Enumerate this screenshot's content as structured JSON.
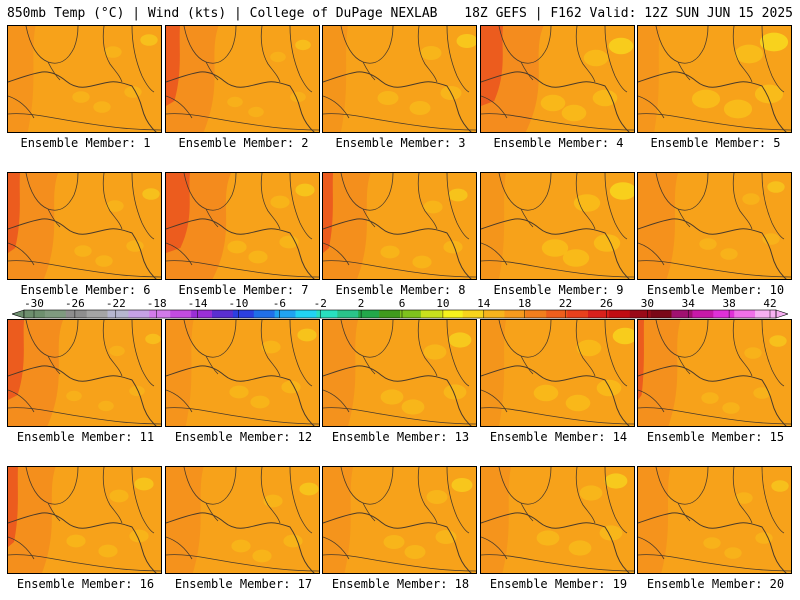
{
  "header": {
    "left": "850mb Temp (°C) | Wind (kts) | College of DuPage NEXLAB",
    "right": "18Z GEFS | F162 Valid: 12Z SUN JUN 15 2025"
  },
  "panels": [
    {
      "label": "Ensemble Member: 1",
      "west_hot": 0.15,
      "east_cool": 0.15
    },
    {
      "label": "Ensemble Member: 2",
      "west_hot": 0.65,
      "east_cool": 0.1
    },
    {
      "label": "Ensemble Member: 3",
      "west_hot": 0.1,
      "east_cool": 0.25
    },
    {
      "label": "Ensemble Member: 4",
      "west_hot": 0.85,
      "east_cool": 0.35
    },
    {
      "label": "Ensemble Member: 5",
      "west_hot": 0.05,
      "east_cool": 0.45
    },
    {
      "label": "Ensemble Member: 6",
      "west_hot": 0.6,
      "east_cool": 0.15
    },
    {
      "label": "Ensemble Member: 7",
      "west_hot": 0.9,
      "east_cool": 0.2
    },
    {
      "label": "Ensemble Member: 8",
      "west_hot": 0.55,
      "east_cool": 0.2
    },
    {
      "label": "Ensemble Member: 9",
      "west_hot": 0.1,
      "east_cool": 0.4
    },
    {
      "label": "Ensemble Member: 10",
      "west_hot": 0.4,
      "east_cool": 0.15
    },
    {
      "label": "Ensemble Member: 11",
      "west_hot": 0.7,
      "east_cool": 0.1
    },
    {
      "label": "Ensemble Member: 12",
      "west_hot": 0.15,
      "east_cool": 0.2
    },
    {
      "label": "Ensemble Member: 13",
      "west_hot": 0.3,
      "east_cool": 0.3
    },
    {
      "label": "Ensemble Member: 14",
      "west_hot": 0.1,
      "east_cool": 0.35
    },
    {
      "label": "Ensemble Member: 15",
      "west_hot": 0.45,
      "east_cool": 0.15
    },
    {
      "label": "Ensemble Member: 16",
      "west_hot": 0.55,
      "east_cool": 0.2
    },
    {
      "label": "Ensemble Member: 17",
      "west_hot": 0.35,
      "east_cool": 0.2
    },
    {
      "label": "Ensemble Member: 18",
      "west_hot": 0.2,
      "east_cool": 0.25
    },
    {
      "label": "Ensemble Member: 19",
      "west_hot": 0.2,
      "east_cool": 0.3
    },
    {
      "label": "Ensemble Member: 20",
      "west_hot": 0.25,
      "east_cool": 0.15
    }
  ],
  "colorbar": {
    "tick_labels": [
      "-30",
      "-26",
      "-22",
      "-18",
      "-14",
      "-10",
      "-6",
      "-2",
      "2",
      "6",
      "10",
      "14",
      "18",
      "22",
      "26",
      "30",
      "34",
      "38",
      "42"
    ],
    "colors": [
      "#6e8f6e",
      "#7f9a7f",
      "#8e8e8e",
      "#a5a5a5",
      "#b7b7cf",
      "#c6a2e6",
      "#d27aea",
      "#c24be0",
      "#9a2fd6",
      "#5a2fd0",
      "#2b3fe0",
      "#1f6fe8",
      "#1fa3f0",
      "#21d3f2",
      "#28e0c0",
      "#2ac48a",
      "#22a84a",
      "#3f9a1e",
      "#7ec21c",
      "#c8e01c",
      "#f7f21c",
      "#f7d41c",
      "#f7b41c",
      "#f79a1c",
      "#f27e1c",
      "#ee5e1c",
      "#e8401c",
      "#d8201c",
      "#c00c12",
      "#9a0a18",
      "#7a0818",
      "#a01070",
      "#c818a8",
      "#e030d8",
      "#f070e8",
      "#f7b0f2"
    ]
  },
  "colors": {
    "base": "#f7a21a",
    "warm": "#f38a1e",
    "hot": "#ec5c1e",
    "cool": "#f9c21a",
    "cooler": "#f8de1e",
    "line": "#4a3a2a"
  }
}
